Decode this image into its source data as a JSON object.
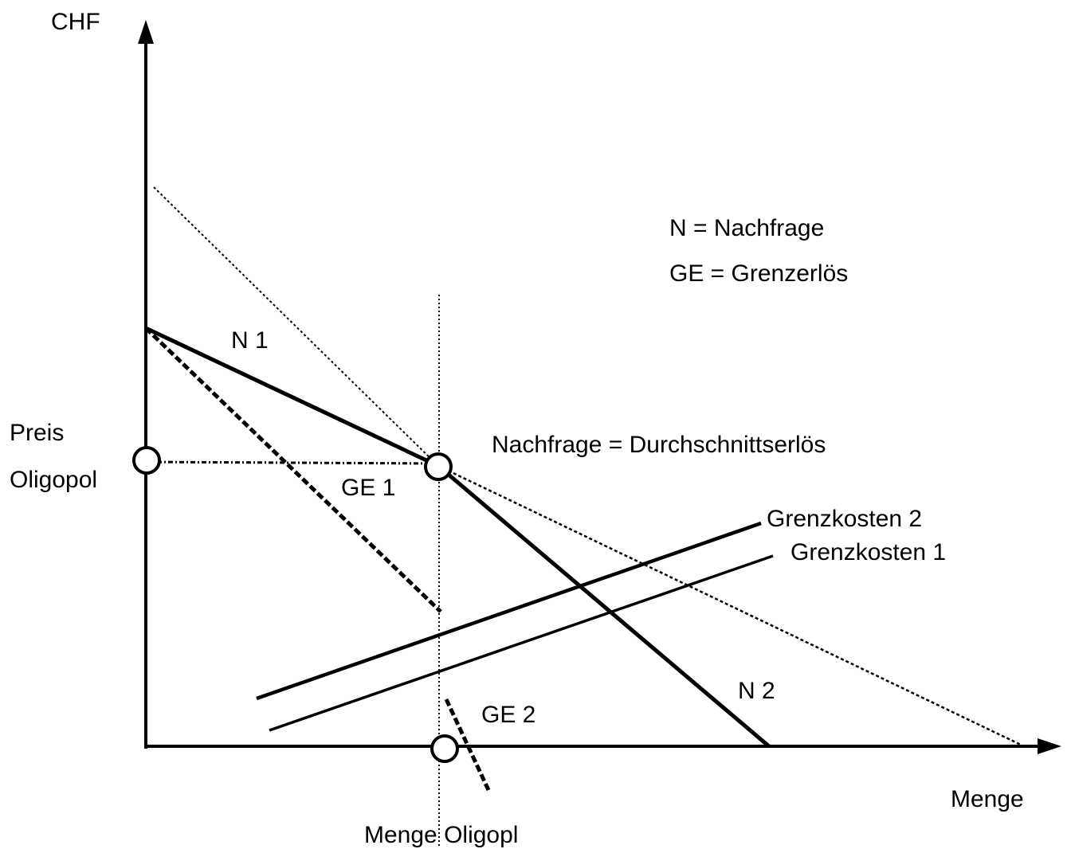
{
  "axes": {
    "y_label": "CHF",
    "x_label": "Menge"
  },
  "price_label": {
    "line1": "Preis",
    "line2": "Oligopol"
  },
  "quantity_label": "Menge Oligopl",
  "legend": {
    "n": "N = Nachfrage",
    "ge": "GE = Grenzerlös"
  },
  "curves": {
    "n1": "N 1",
    "n2": "N 2",
    "ge1": "GE 1",
    "ge2": "GE 2",
    "demand": "Nachfrage = Durchschnittserlös",
    "mc2": "Grenzkosten 2",
    "mc1": "Grenzkosten 1"
  }
}
